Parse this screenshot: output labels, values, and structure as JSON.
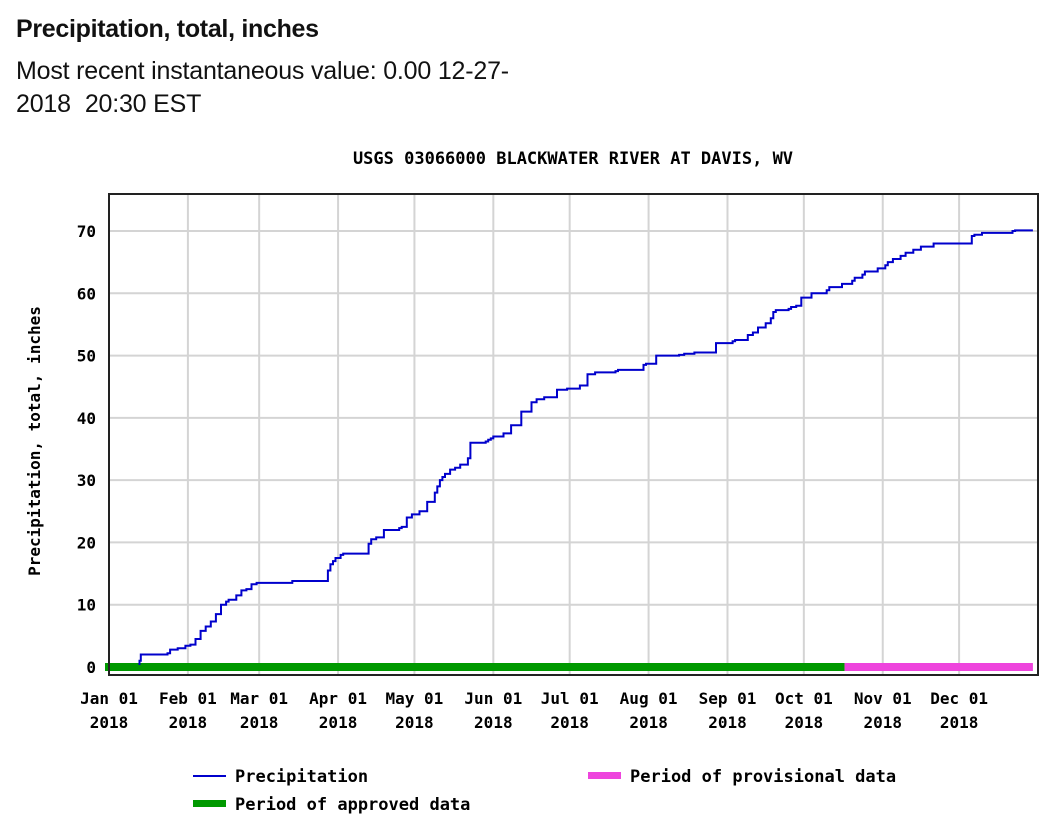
{
  "header": {
    "title": "Precipitation, total, inches",
    "subtitle_prefix": "Most recent instantaneous value: 0.00 12-27-",
    "subtitle_date": "2018",
    "subtitle_time": "20:30 EST"
  },
  "chart_data": {
    "type": "line",
    "title": "USGS 03066000 BLACKWATER RIVER AT DAVIS, WV",
    "xlabel": "",
    "ylabel": "Precipitation, total, inches",
    "ylim": [
      0,
      76
    ],
    "xlim_days": [
      0,
      365
    ],
    "grid": true,
    "y_ticks": [
      0,
      10,
      20,
      30,
      40,
      50,
      60,
      70
    ],
    "x_ticks": [
      {
        "day": 0,
        "line1": "Jan 01",
        "line2": "2018"
      },
      {
        "day": 31,
        "line1": "Feb 01",
        "line2": "2018"
      },
      {
        "day": 59,
        "line1": "Mar 01",
        "line2": "2018"
      },
      {
        "day": 90,
        "line1": "Apr 01",
        "line2": "2018"
      },
      {
        "day": 120,
        "line1": "May 01",
        "line2": "2018"
      },
      {
        "day": 151,
        "line1": "Jun 01",
        "line2": "2018"
      },
      {
        "day": 181,
        "line1": "Jul 01",
        "line2": "2018"
      },
      {
        "day": 212,
        "line1": "Aug 01",
        "line2": "2018"
      },
      {
        "day": 243,
        "line1": "Sep 01",
        "line2": "2018"
      },
      {
        "day": 273,
        "line1": "Oct 01",
        "line2": "2018"
      },
      {
        "day": 304,
        "line1": "Nov 01",
        "line2": "2018"
      },
      {
        "day": 334,
        "line1": "Dec 01",
        "line2": "2018"
      }
    ],
    "series": [
      {
        "name": "Precipitation",
        "color": "#0000cc",
        "x_day": [
          12,
          12.5,
          23,
          24,
          27,
          30,
          32,
          34,
          36,
          38,
          40,
          42,
          44,
          46,
          47,
          50,
          52,
          54,
          56,
          58,
          62,
          72,
          74,
          86,
          87,
          88,
          89,
          91,
          92,
          94,
          96,
          102,
          103,
          105,
          108,
          114,
          115,
          117,
          119,
          122,
          125,
          128,
          129,
          130,
          131,
          132,
          134,
          136,
          138,
          141,
          142,
          148,
          149,
          150,
          151,
          155,
          158,
          162,
          166,
          168,
          171,
          176,
          178,
          180,
          185,
          188,
          191,
          199,
          200,
          210,
          211,
          215,
          218,
          224,
          226,
          230,
          238,
          238.5,
          245,
          246,
          251,
          253,
          255,
          258,
          260,
          261,
          262,
          267,
          268,
          270,
          272,
          276,
          282,
          283,
          288,
          292,
          293,
          296,
          297,
          302,
          305,
          306,
          308,
          311,
          313,
          316,
          319,
          324,
          327,
          333,
          337,
          339,
          340,
          343,
          355,
          356,
          361,
          363
        ],
        "y": [
          1,
          2,
          2.2,
          2.8,
          3,
          3.4,
          3.6,
          4.5,
          5.8,
          6.5,
          7.3,
          8.5,
          10,
          10.5,
          10.8,
          11.5,
          12.3,
          12.5,
          13.3,
          13.5,
          13.5,
          13.8,
          13.8,
          15.5,
          16.5,
          17,
          17.5,
          18,
          18.2,
          18.2,
          18.2,
          19.8,
          20.5,
          20.8,
          22,
          22.3,
          22.5,
          24,
          24.5,
          25,
          26.5,
          28,
          29,
          30,
          30.5,
          31,
          31.7,
          32,
          32.5,
          33.5,
          36,
          36.2,
          36.5,
          36.7,
          37,
          37.5,
          38.8,
          41,
          42.5,
          43,
          43.3,
          44.5,
          44.5,
          44.7,
          45.2,
          47,
          47.3,
          47.5,
          47.7,
          48.5,
          48.7,
          50,
          50,
          50.1,
          50.3,
          50.5,
          50.5,
          52,
          52.3,
          52.5,
          53.3,
          53.7,
          54.5,
          55.2,
          56,
          57,
          57.3,
          57.5,
          57.8,
          58,
          59.3,
          60,
          60.5,
          61,
          61.5,
          62,
          62.5,
          63,
          63.5,
          64,
          64.5,
          65,
          65.5,
          66,
          66.5,
          67,
          67.5,
          68,
          68,
          68,
          68,
          69.2,
          69.4,
          69.7,
          70,
          70.1,
          70.1,
          70.1
        ]
      }
    ],
    "periods": [
      {
        "name": "Period of approved data",
        "color": "#009900",
        "start_day": 0,
        "end_day": 289
      },
      {
        "name": "Period of provisional data",
        "color": "#ee44dd",
        "start_day": 289,
        "end_day": 363
      }
    ],
    "legend": {
      "placement": "bottom",
      "entries": [
        {
          "label": "Precipitation",
          "color": "#0000cc",
          "kind": "line"
        },
        {
          "label": "Period of provisional data",
          "color": "#ee44dd",
          "kind": "bar"
        },
        {
          "label": "Period of approved data",
          "color": "#009900",
          "kind": "bar"
        }
      ]
    }
  }
}
